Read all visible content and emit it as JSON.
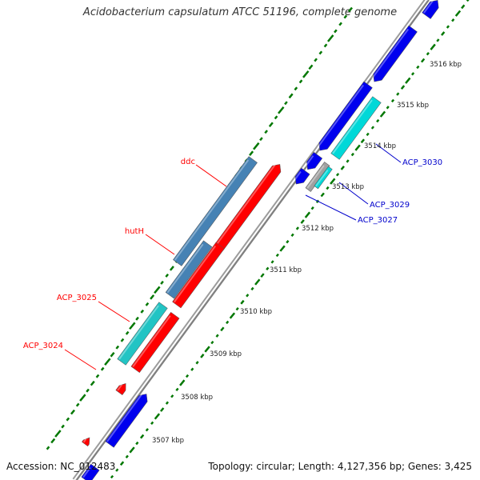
{
  "title": "Acidobacterium capsulatum ATCC 51196, complete genome",
  "footer": {
    "accession": "Accession: NC_012483",
    "summary": "Topology: circular; Length: 4,127,356 bp; Genes: 3,425"
  },
  "ticks": [
    "3507 kbp",
    "3508 kbp",
    "3509 kbp",
    "3510 kbp",
    "3511 kbp",
    "3512 kbp",
    "3513 kbp",
    "3514 kbp",
    "3515 kbp",
    "3516 kbp"
  ],
  "labels": {
    "ddc": "ddc",
    "hutH": "hutH",
    "acp3025": "ACP_3025",
    "acp3024": "ACP_3024",
    "acp3030": "ACP_3030",
    "acp3029": "ACP_3029",
    "acp3027": "ACP_3027"
  },
  "colors": {
    "forward_cds": "#0000ee",
    "reverse_cds": "#ff0000",
    "rna_gene": "#00d8d8",
    "rna_gene_left": "#22c4c4",
    "gene_blue": "#4682b4",
    "pseudo": "#a0a0a0",
    "backbone": "#888888",
    "gc_marks": "#007700",
    "label_left": "#ff0000",
    "label_right": "#0000cc"
  }
}
